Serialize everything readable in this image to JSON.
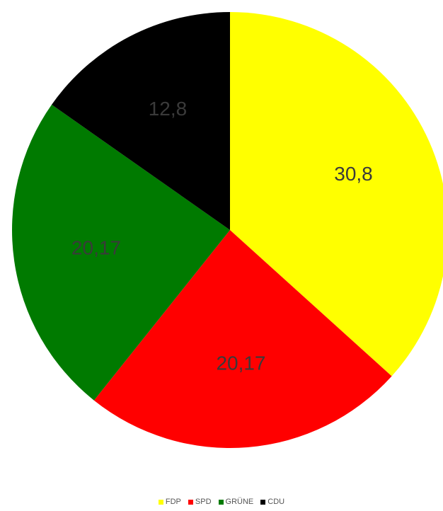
{
  "chart_data": {
    "type": "pie",
    "title": "",
    "categories": [
      "FDP",
      "SPD",
      "GRÜNE",
      "CDU"
    ],
    "values": [
      30.8,
      20.17,
      20.17,
      12.8
    ],
    "data_labels": [
      "30,8",
      "20,17",
      "20,17",
      "12,8"
    ],
    "colors": [
      "#FFFF00",
      "#FF0000",
      "#007A00",
      "#000000"
    ],
    "legend_position": "bottom",
    "start_angle": "top",
    "direction": "clockwise"
  }
}
